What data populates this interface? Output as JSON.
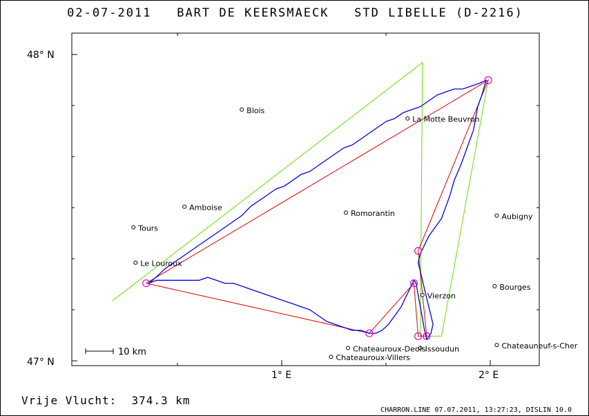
{
  "header": {
    "date": "02-07-2011",
    "pilot": "BART DE KEERSMAECK",
    "glider": "STD LIBELLE (D-2216)"
  },
  "axes": {
    "lat_top": "48° N",
    "lat_bottom": "47° N",
    "lon_1": "1° E",
    "lon_2": "2° E"
  },
  "scale_label": "10 km",
  "footer": {
    "distance": "Vrije Vlucht:  374.3 km",
    "source": "CHARRON.LINE 07.07.2011, 13:27:23, DISLIN 10.0"
  },
  "map": {
    "lon_range": [
      0.02,
      2.22
    ],
    "lat_range": [
      46.98,
      48.11
    ],
    "colors": {
      "track": "#0000e0",
      "route": "#e00000",
      "sector": "#66dd00",
      "turnpoint": "#dd00dd",
      "frame": "#000000"
    },
    "towns": [
      {
        "name": "Blois",
        "lon": 0.82,
        "lat": 47.85
      },
      {
        "name": "La Motte Beuvron",
        "lon": 1.6,
        "lat": 47.82
      },
      {
        "name": "Aubigny",
        "lon": 2.02,
        "lat": 47.49
      },
      {
        "name": "Amboise",
        "lon": 0.55,
        "lat": 47.52
      },
      {
        "name": "Romorantin",
        "lon": 1.31,
        "lat": 47.5
      },
      {
        "name": "Tours",
        "lon": 0.31,
        "lat": 47.45
      },
      {
        "name": "Vierzon",
        "lon": 1.67,
        "lat": 47.22
      },
      {
        "name": "Le Louroux",
        "lon": 0.32,
        "lat": 47.33
      },
      {
        "name": "Bourges",
        "lon": 2.01,
        "lat": 47.25
      },
      {
        "name": "Issoudun",
        "lon": 1.66,
        "lat": 47.04
      },
      {
        "name": "Chateauroux-Deols",
        "lon": 1.32,
        "lat": 47.04
      },
      {
        "name": "Chateauneuf-s-Cher",
        "lon": 2.02,
        "lat": 47.05
      },
      {
        "name": "Chateauroux-Villers",
        "lon": 1.24,
        "lat": 47.01
      }
    ],
    "turnpoints": [
      {
        "lon": 0.37,
        "lat": 47.26
      },
      {
        "lon": 1.42,
        "lat": 47.09
      },
      {
        "lon": 1.98,
        "lat": 47.95
      },
      {
        "lon": 1.65,
        "lat": 47.37
      },
      {
        "lon": 1.63,
        "lat": 47.26
      },
      {
        "lon": 1.65,
        "lat": 47.08
      },
      {
        "lon": 1.69,
        "lat": 47.08
      }
    ],
    "route": [
      [
        0.37,
        47.26
      ],
      [
        1.42,
        47.09
      ],
      [
        1.63,
        47.26
      ],
      [
        1.65,
        47.08
      ],
      [
        1.69,
        47.08
      ],
      [
        1.65,
        47.37
      ],
      [
        1.98,
        47.95
      ],
      [
        0.37,
        47.26
      ]
    ],
    "sectors": [
      [
        [
          0.21,
          47.2
        ],
        [
          1.67,
          48.01
        ],
        [
          1.66,
          47.08
        ],
        [
          1.76,
          47.08
        ],
        [
          1.98,
          47.95
        ]
      ]
    ],
    "track": [
      [
        0.38,
        47.26
      ],
      [
        0.4,
        47.27
      ],
      [
        0.46,
        47.31
      ],
      [
        0.52,
        47.34
      ],
      [
        0.58,
        47.37
      ],
      [
        0.62,
        47.39
      ],
      [
        0.66,
        47.41
      ],
      [
        0.7,
        47.43
      ],
      [
        0.74,
        47.45
      ],
      [
        0.78,
        47.47
      ],
      [
        0.82,
        47.49
      ],
      [
        0.86,
        47.52
      ],
      [
        0.9,
        47.54
      ],
      [
        0.94,
        47.56
      ],
      [
        0.98,
        47.58
      ],
      [
        1.02,
        47.59
      ],
      [
        1.06,
        47.61
      ],
      [
        1.1,
        47.63
      ],
      [
        1.14,
        47.64
      ],
      [
        1.18,
        47.66
      ],
      [
        1.22,
        47.68
      ],
      [
        1.26,
        47.7
      ],
      [
        1.3,
        47.72
      ],
      [
        1.34,
        47.73
      ],
      [
        1.38,
        47.75
      ],
      [
        1.42,
        47.77
      ],
      [
        1.46,
        47.79
      ],
      [
        1.5,
        47.81
      ],
      [
        1.54,
        47.82
      ],
      [
        1.58,
        47.84
      ],
      [
        1.62,
        47.85
      ],
      [
        1.66,
        47.86
      ],
      [
        1.7,
        47.88
      ],
      [
        1.74,
        47.9
      ],
      [
        1.78,
        47.91
      ],
      [
        1.82,
        47.92
      ],
      [
        1.86,
        47.92
      ],
      [
        1.9,
        47.93
      ],
      [
        1.94,
        47.94
      ],
      [
        1.97,
        47.95
      ],
      [
        1.95,
        47.9
      ],
      [
        1.93,
        47.86
      ],
      [
        1.92,
        47.82
      ],
      [
        1.91,
        47.78
      ],
      [
        1.89,
        47.74
      ],
      [
        1.87,
        47.7
      ],
      [
        1.85,
        47.66
      ],
      [
        1.82,
        47.61
      ],
      [
        1.8,
        47.56
      ],
      [
        1.78,
        47.52
      ],
      [
        1.76,
        47.48
      ],
      [
        1.73,
        47.45
      ],
      [
        1.7,
        47.42
      ],
      [
        1.68,
        47.39
      ],
      [
        1.66,
        47.36
      ],
      [
        1.65,
        47.33
      ],
      [
        1.66,
        47.3
      ],
      [
        1.67,
        47.27
      ],
      [
        1.68,
        47.24
      ],
      [
        1.69,
        47.21
      ],
      [
        1.7,
        47.18
      ],
      [
        1.71,
        47.15
      ],
      [
        1.72,
        47.12
      ],
      [
        1.71,
        47.09
      ],
      [
        1.69,
        47.07
      ],
      [
        1.68,
        47.1
      ],
      [
        1.67,
        47.14
      ],
      [
        1.66,
        47.18
      ],
      [
        1.65,
        47.22
      ],
      [
        1.64,
        47.26
      ],
      [
        1.63,
        47.27
      ],
      [
        1.61,
        47.24
      ],
      [
        1.59,
        47.21
      ],
      [
        1.57,
        47.18
      ],
      [
        1.55,
        47.16
      ],
      [
        1.53,
        47.14
      ],
      [
        1.51,
        47.12
      ],
      [
        1.48,
        47.1
      ],
      [
        1.45,
        47.09
      ],
      [
        1.42,
        47.09
      ],
      [
        1.38,
        47.1
      ],
      [
        1.34,
        47.1
      ],
      [
        1.3,
        47.11
      ],
      [
        1.26,
        47.12
      ],
      [
        1.22,
        47.13
      ],
      [
        1.18,
        47.15
      ],
      [
        1.14,
        47.17
      ],
      [
        1.1,
        47.18
      ],
      [
        1.06,
        47.19
      ],
      [
        1.02,
        47.2
      ],
      [
        0.98,
        47.21
      ],
      [
        0.94,
        47.22
      ],
      [
        0.9,
        47.23
      ],
      [
        0.86,
        47.24
      ],
      [
        0.82,
        47.25
      ],
      [
        0.78,
        47.26
      ],
      [
        0.74,
        47.26
      ],
      [
        0.7,
        47.27
      ],
      [
        0.66,
        47.28
      ],
      [
        0.62,
        47.27
      ],
      [
        0.58,
        47.27
      ],
      [
        0.54,
        47.27
      ],
      [
        0.5,
        47.27
      ],
      [
        0.46,
        47.27
      ],
      [
        0.42,
        47.27
      ],
      [
        0.38,
        47.26
      ]
    ]
  }
}
